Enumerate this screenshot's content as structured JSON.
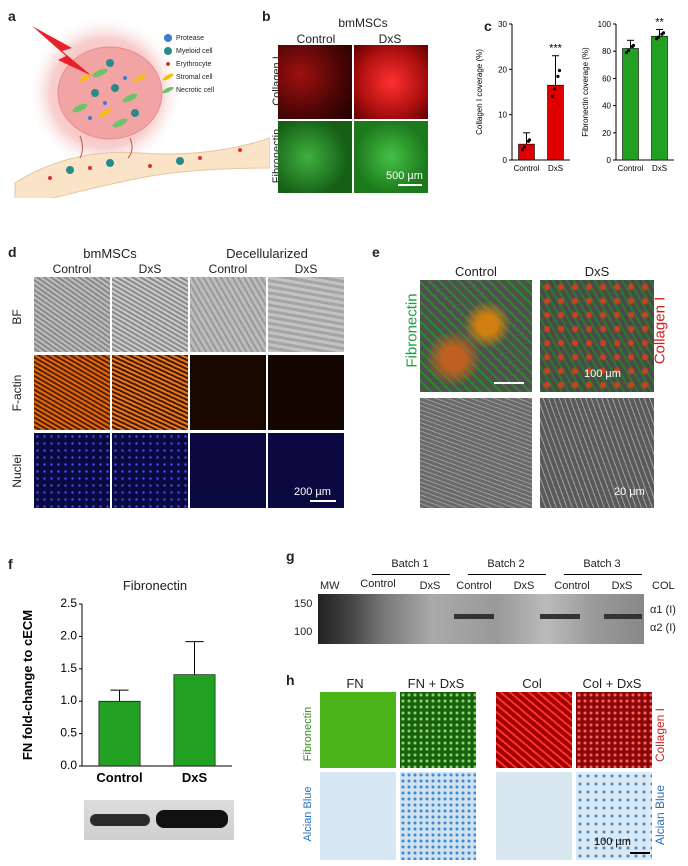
{
  "panel_labels": {
    "a": "a",
    "b": "b",
    "c": "c",
    "d": "d",
    "e": "e",
    "f": "f",
    "g": "g",
    "h": "h"
  },
  "legend_a": [
    "Protease",
    "Myeloid cell",
    "Erythrocyte",
    "Stromal cell",
    "Necrotic cell"
  ],
  "panel_b": {
    "title": "bmMSCs",
    "cols": [
      "Control",
      "DxS"
    ],
    "rows": [
      "Collagen I",
      "Fibronectin"
    ],
    "scale": "500 µm"
  },
  "panel_c": {
    "charts": [
      {
        "ylabel": "Collagen I coverage (%)",
        "ticks": [
          "0",
          "10",
          "20",
          "30"
        ],
        "cats": [
          "Control",
          "DxS"
        ],
        "values": [
          3.5,
          16.5
        ],
        "errors": [
          2.5,
          6.5
        ],
        "sig": "***",
        "ylim": [
          0,
          30
        ],
        "color": "#e00000"
      },
      {
        "ylabel": "Fibronectin coverage (%)",
        "ticks": [
          "0",
          "20",
          "40",
          "60",
          "80",
          "100"
        ],
        "cats": [
          "Control",
          "DxS"
        ],
        "values": [
          82,
          91
        ],
        "errors": [
          6,
          5
        ],
        "sig": "**",
        "ylim": [
          0,
          100
        ],
        "color": "#22a022"
      }
    ]
  },
  "panel_d": {
    "groups": [
      "bmMSCs",
      "Decellularized"
    ],
    "cols": [
      "Control",
      "DxS",
      "Control",
      "DxS"
    ],
    "rows": [
      "BF",
      "F-actin",
      "Nuclei"
    ],
    "scale": "200 µm"
  },
  "panel_e": {
    "cols": [
      "Control",
      "DxS"
    ],
    "left_label": "Fibronectin",
    "right_label": "Collagen I",
    "scale_top": "100 µm",
    "scale_bottom": "20 µm"
  },
  "panel_f": {
    "title": "Fibronectin",
    "ylabel": "FN fold-change to cECM",
    "ticks": [
      "0.0",
      "0.5",
      "1.0",
      "1.5",
      "2.0",
      "2.5"
    ]
  },
  "chart_data": {
    "type": "bar",
    "categories": [
      "Control",
      "DxS"
    ],
    "values": [
      1.0,
      1.41
    ],
    "errors": [
      0.17,
      0.51
    ],
    "title": "Fibronectin",
    "ylabel": "FN fold-change to cECM",
    "ylim": [
      0,
      2.5
    ],
    "color": "#22a022"
  },
  "panel_g": {
    "batches": [
      "Batch 1",
      "Batch 2",
      "Batch 3"
    ],
    "lanes": [
      "Control",
      "DxS",
      "Control",
      "DxS",
      "Control",
      "DxS"
    ],
    "mw": "MW",
    "col": "COL",
    "markers": [
      "150",
      "100"
    ],
    "bands": [
      "α1 (I)",
      "α2 (I)"
    ]
  },
  "panel_h": {
    "cols": [
      "FN",
      "FN + DxS",
      "Col",
      "Col + DxS"
    ],
    "left_labels": [
      "Fibronectin",
      "Alcian Blue"
    ],
    "right_labels": [
      "Collagen I",
      "Alcian Blue"
    ],
    "scale": "100 µm"
  }
}
